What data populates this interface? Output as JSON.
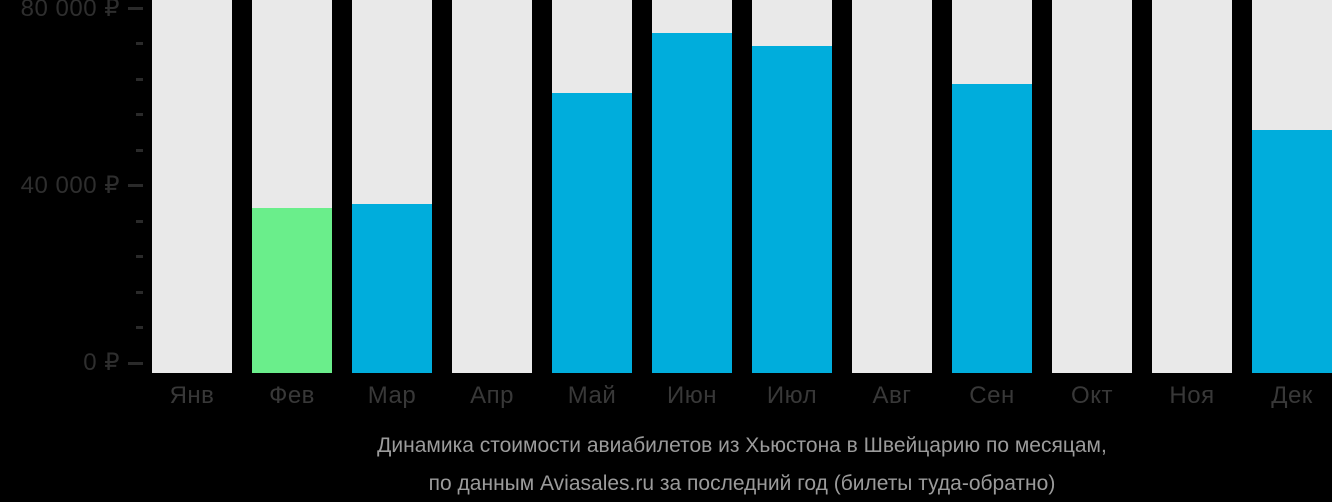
{
  "chart_data": {
    "type": "bar",
    "title": "Динамика стоимости авиабилетов из Хьюстона в Швейцарию по месяцам, по данным Aviasales.ru за последний год (билеты туда-обратно)",
    "categories": [
      "Янв",
      "Фев",
      "Мар",
      "Апр",
      "Май",
      "Июн",
      "Июл",
      "Авг",
      "Сен",
      "Окт",
      "Ноя",
      "Дек"
    ],
    "values": [
      null,
      35000,
      36000,
      null,
      61000,
      74500,
      71500,
      null,
      63000,
      null,
      null,
      52500
    ],
    "highlight_index": 1,
    "xlabel": "",
    "ylabel": "",
    "ylim": [
      0,
      80000
    ],
    "yticks": [
      {
        "value": 80000,
        "label": "80 000 ₽"
      },
      {
        "value": 40000,
        "label": "40 000 ₽"
      },
      {
        "value": 0,
        "label": "0 ₽"
      }
    ],
    "minor_tick_step": 8000,
    "grid": false,
    "legend": null,
    "currency": "₽",
    "colors": {
      "bar": "#00ADDC",
      "bar_highlight": "#6AEE8B",
      "track": "#E9E9E9",
      "axis_text": "#2E2E2E",
      "tick_mark": "#2A2A2A",
      "month_text": "#383838",
      "caption_text": "#9B9B9B",
      "background": "#000000"
    }
  },
  "caption": {
    "line1": "Динамика стоимости авиабилетов из Хьюстона в Швейцарию по месяцам,",
    "line2": "по данным Aviasales.ru за последний год (билеты туда-обратно)"
  }
}
